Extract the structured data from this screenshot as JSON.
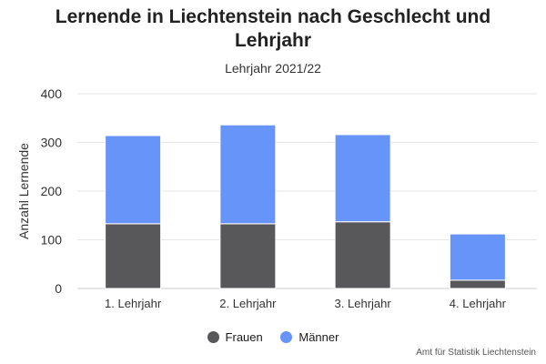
{
  "chart_data": {
    "type": "bar",
    "stacked": true,
    "title": "Lernende in Liechtenstein nach Geschlecht und Lehrjahr",
    "subtitle": "Lehrjahr 2021/22",
    "xlabel": "",
    "ylabel": "Anzahl Lernende",
    "ylim": [
      0,
      400
    ],
    "yticks": [
      0,
      100,
      200,
      300,
      400
    ],
    "grid": true,
    "legend_position": "bottom",
    "categories": [
      "1. Lehrjahr",
      "2. Lehrjahr",
      "3. Lehrjahr",
      "4. Lehrjahr"
    ],
    "series": [
      {
        "name": "Frauen",
        "color": "#58585a",
        "values": [
          133,
          133,
          137,
          17
        ]
      },
      {
        "name": "Männer",
        "color": "#6794f9",
        "values": [
          181,
          203,
          179,
          95
        ]
      }
    ]
  },
  "credits": "Amt für Statistik Liechtenstein"
}
